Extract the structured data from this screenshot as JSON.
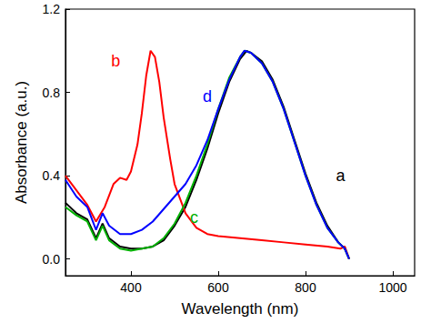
{
  "chart_data": {
    "type": "line",
    "x_label": "Wavelength (nm)",
    "y_label": "Absorbance (a.u.)",
    "xlim": [
      250,
      1050
    ],
    "xticks": [
      400,
      600,
      800,
      1000
    ],
    "ylim": [
      -0.08,
      1.2
    ],
    "yticks": [
      {
        "value": 0,
        "label": "0.0"
      },
      0.4,
      0.8,
      1.2
    ],
    "grid": false,
    "series": [
      {
        "name": "a",
        "color": "#000000",
        "x": [
          250,
          275,
          300,
          320,
          335,
          350,
          375,
          400,
          425,
          450,
          475,
          500,
          525,
          550,
          575,
          600,
          625,
          650,
          665,
          675,
          700,
          725,
          750,
          775,
          800,
          825,
          850,
          875,
          890,
          900
        ],
        "values": [
          0.27,
          0.22,
          0.19,
          0.1,
          0.17,
          0.1,
          0.06,
          0.05,
          0.05,
          0.06,
          0.09,
          0.16,
          0.25,
          0.38,
          0.53,
          0.7,
          0.85,
          0.96,
          1.0,
          0.99,
          0.95,
          0.86,
          0.73,
          0.57,
          0.41,
          0.27,
          0.16,
          0.08,
          0.05,
          0.0
        ]
      },
      {
        "name": "b",
        "color": "#ff0000",
        "x": [
          250,
          275,
          300,
          320,
          340,
          360,
          375,
          390,
          400,
          415,
          425,
          435,
          445,
          455,
          465,
          475,
          490,
          500,
          525,
          550,
          575,
          600,
          650,
          700,
          750,
          800,
          850,
          880,
          890,
          900
        ],
        "values": [
          0.4,
          0.33,
          0.26,
          0.18,
          0.25,
          0.36,
          0.39,
          0.38,
          0.42,
          0.55,
          0.7,
          0.88,
          1.0,
          0.97,
          0.85,
          0.68,
          0.48,
          0.36,
          0.22,
          0.15,
          0.12,
          0.11,
          0.1,
          0.09,
          0.08,
          0.07,
          0.06,
          0.05,
          0.06,
          0.0
        ]
      },
      {
        "name": "c",
        "color": "#00b000",
        "x": [
          250,
          275,
          300,
          320,
          335,
          350,
          375,
          400,
          425,
          450,
          475,
          500,
          525,
          550,
          575,
          600,
          625,
          650,
          660,
          675,
          700,
          725,
          750,
          775,
          800,
          825,
          850,
          875,
          890,
          900
        ],
        "values": [
          0.25,
          0.21,
          0.18,
          0.09,
          0.16,
          0.09,
          0.05,
          0.04,
          0.05,
          0.06,
          0.1,
          0.17,
          0.27,
          0.4,
          0.55,
          0.72,
          0.87,
          0.97,
          1.0,
          0.99,
          0.94,
          0.85,
          0.72,
          0.56,
          0.4,
          0.26,
          0.15,
          0.08,
          0.05,
          0.0
        ]
      },
      {
        "name": "d",
        "color": "#0000ff",
        "x": [
          250,
          275,
          300,
          320,
          335,
          350,
          375,
          400,
          425,
          450,
          475,
          500,
          525,
          550,
          575,
          600,
          625,
          650,
          660,
          675,
          700,
          725,
          750,
          775,
          800,
          825,
          850,
          875,
          890,
          900
        ],
        "values": [
          0.38,
          0.3,
          0.25,
          0.14,
          0.22,
          0.16,
          0.12,
          0.12,
          0.14,
          0.18,
          0.24,
          0.3,
          0.36,
          0.45,
          0.57,
          0.72,
          0.86,
          0.97,
          1.0,
          0.99,
          0.94,
          0.85,
          0.72,
          0.56,
          0.4,
          0.26,
          0.15,
          0.08,
          0.05,
          0.0
        ]
      }
    ],
    "annotations": [
      {
        "text": "a",
        "x": 880,
        "y": 0.4
      },
      {
        "text": "b",
        "x": 365,
        "y": 0.95
      },
      {
        "text": "c",
        "x": 545,
        "y": 0.2
      },
      {
        "text": "d",
        "x": 575,
        "y": 0.78
      }
    ]
  }
}
